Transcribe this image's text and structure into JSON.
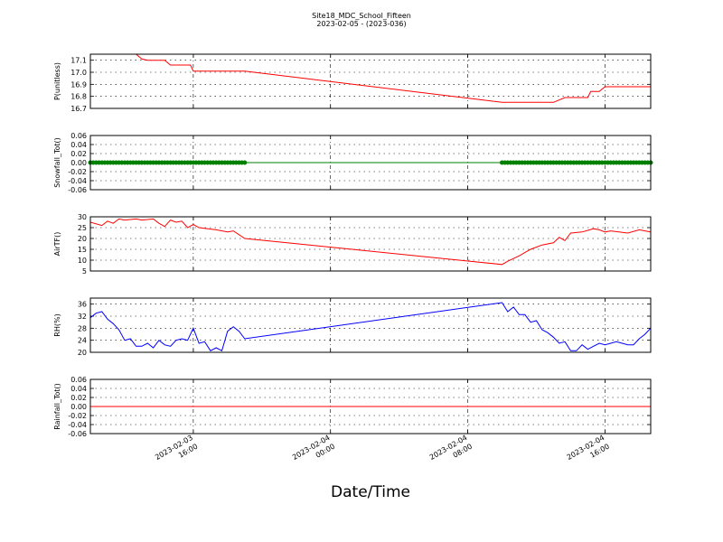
{
  "title_line1": "Site18_MDC_School_Fifteen",
  "title_line2": "2023-02-05 - (2023-036)",
  "xlabel": "Date/Time",
  "x_ticks": [
    {
      "pos": "2023-02-03T16:00",
      "line1": "2023-02-03",
      "line2": "16:00"
    },
    {
      "pos": "2023-02-04T00:00",
      "line1": "2023-02-04",
      "line2": "00:00"
    },
    {
      "pos": "2023-02-04T08:00",
      "line1": "2023-02-04",
      "line2": "08:00"
    },
    {
      "pos": "2023-02-04T16:00",
      "line1": "2023-02-04",
      "line2": "16:00"
    }
  ],
  "chart_data": [
    {
      "type": "line",
      "ylabel": "P(unitless)",
      "ylim": [
        16.7,
        17.15
      ],
      "yticks": [
        "16.7",
        "16.8",
        "16.9",
        "17.0",
        "17.1"
      ],
      "xlim": [
        "2023-02-03T10:00",
        "2023-02-04T18:40"
      ],
      "grid": true,
      "color": "#ff0000",
      "x": [
        "2023-02-03T12:40",
        "2023-02-03T13:00",
        "2023-02-03T13:20",
        "2023-02-03T14:20",
        "2023-02-03T14:40",
        "2023-02-03T15:50",
        "2023-02-03T16:00",
        "2023-02-03T19:00",
        "2023-02-04T10:00",
        "2023-02-04T12:00",
        "2023-02-04T13:00",
        "2023-02-04T13:40",
        "2023-02-04T15:00",
        "2023-02-04T15:10",
        "2023-02-04T15:40",
        "2023-02-04T16:00",
        "2023-02-04T18:40"
      ],
      "y": [
        17.15,
        17.11,
        17.1,
        17.1,
        17.06,
        17.06,
        17.01,
        17.01,
        16.75,
        16.75,
        16.75,
        16.79,
        16.79,
        16.84,
        16.84,
        16.88,
        16.88
      ]
    },
    {
      "type": "line",
      "ylabel": "Snowfall_Tot()",
      "ylim": [
        -0.06,
        0.06
      ],
      "yticks": [
        "-0.06",
        "-0.04",
        "-0.02",
        "0.00",
        "0.02",
        "0.04",
        "0.06"
      ],
      "xlim": [
        "2023-02-03T10:00",
        "2023-02-04T18:40"
      ],
      "grid": true,
      "color": "#008000",
      "markers": "circle",
      "x": [
        "2023-02-03T10:00",
        "2023-02-04T18:40"
      ],
      "y": [
        0.0,
        0.0
      ],
      "marker_ranges": [
        [
          "2023-02-03T10:00",
          "2023-02-03T19:00"
        ],
        [
          "2023-02-04T10:00",
          "2023-02-04T18:40"
        ]
      ],
      "marker_interval_minutes": 10
    },
    {
      "type": "line",
      "ylabel": "AirTF()",
      "ylim": [
        5,
        30
      ],
      "yticks": [
        "5",
        "10",
        "15",
        "20",
        "25",
        "30"
      ],
      "xlim": [
        "2023-02-03T10:00",
        "2023-02-04T18:40"
      ],
      "grid": true,
      "color": "#ff0000",
      "x": [
        "2023-02-03T10:00",
        "2023-02-03T10:40",
        "2023-02-03T11:00",
        "2023-02-03T11:20",
        "2023-02-03T11:40",
        "2023-02-03T12:00",
        "2023-02-03T12:40",
        "2023-02-03T13:00",
        "2023-02-03T13:40",
        "2023-02-03T14:00",
        "2023-02-03T14:20",
        "2023-02-03T14:40",
        "2023-02-03T15:00",
        "2023-02-03T15:20",
        "2023-02-03T15:40",
        "2023-02-03T16:00",
        "2023-02-03T16:20",
        "2023-02-03T17:20",
        "2023-02-03T18:00",
        "2023-02-03T18:20",
        "2023-02-03T19:00",
        "2023-02-04T10:00",
        "2023-02-04T10:20",
        "2023-02-04T11:00",
        "2023-02-04T11:40",
        "2023-02-04T12:20",
        "2023-02-04T13:00",
        "2023-02-04T13:20",
        "2023-02-04T13:40",
        "2023-02-04T14:00",
        "2023-02-04T14:40",
        "2023-02-04T15:20",
        "2023-02-04T15:40",
        "2023-02-04T16:00",
        "2023-02-04T16:20",
        "2023-02-04T17:20",
        "2023-02-04T18:00",
        "2023-02-04T18:20",
        "2023-02-04T18:40"
      ],
      "y": [
        27.5,
        26,
        28,
        27,
        29,
        28.5,
        29,
        28.5,
        29,
        27,
        25.5,
        28.5,
        27.5,
        28,
        25,
        26.5,
        25,
        24,
        23,
        23.5,
        20,
        8,
        9.5,
        12,
        15,
        17,
        18,
        20.5,
        19,
        22.5,
        23,
        24.5,
        24,
        23,
        23.5,
        22.5,
        24,
        23.5,
        23
      ]
    },
    {
      "type": "line",
      "ylabel": "RH(%)",
      "ylim": [
        20,
        38
      ],
      "yticks": [
        "20",
        "24",
        "28",
        "32",
        "36"
      ],
      "xlim": [
        "2023-02-03T10:00",
        "2023-02-04T18:40"
      ],
      "grid": true,
      "color": "#0000ff",
      "x": [
        "2023-02-03T10:00",
        "2023-02-03T10:20",
        "2023-02-03T10:40",
        "2023-02-03T11:00",
        "2023-02-03T11:20",
        "2023-02-03T11:40",
        "2023-02-03T12:00",
        "2023-02-03T12:20",
        "2023-02-03T12:40",
        "2023-02-03T13:00",
        "2023-02-03T13:20",
        "2023-02-03T13:40",
        "2023-02-03T14:00",
        "2023-02-03T14:20",
        "2023-02-03T14:40",
        "2023-02-03T15:00",
        "2023-02-03T15:20",
        "2023-02-03T15:40",
        "2023-02-03T16:00",
        "2023-02-03T16:20",
        "2023-02-03T16:40",
        "2023-02-03T17:00",
        "2023-02-03T17:20",
        "2023-02-03T17:40",
        "2023-02-03T18:00",
        "2023-02-03T18:20",
        "2023-02-03T18:40",
        "2023-02-03T19:00",
        "2023-02-04T10:00",
        "2023-02-04T10:20",
        "2023-02-04T10:40",
        "2023-02-04T11:00",
        "2023-02-04T11:20",
        "2023-02-04T11:40",
        "2023-02-04T12:00",
        "2023-02-04T12:20",
        "2023-02-04T12:40",
        "2023-02-04T13:00",
        "2023-02-04T13:20",
        "2023-02-04T13:40",
        "2023-02-04T14:00",
        "2023-02-04T14:20",
        "2023-02-04T14:40",
        "2023-02-04T15:00",
        "2023-02-04T15:20",
        "2023-02-04T15:40",
        "2023-02-04T16:00",
        "2023-02-04T16:20",
        "2023-02-04T16:40",
        "2023-02-04T17:00",
        "2023-02-04T17:20",
        "2023-02-04T17:40",
        "2023-02-04T18:00",
        "2023-02-04T18:20",
        "2023-02-04T18:40"
      ],
      "y": [
        31.5,
        33,
        33.5,
        31,
        29.5,
        27.5,
        24,
        24.5,
        22,
        22,
        23,
        21.5,
        24,
        22.5,
        22,
        24,
        24.5,
        24,
        28,
        23,
        23.5,
        20.5,
        21.5,
        20.5,
        27,
        28.5,
        27,
        24.5,
        36.5,
        33.5,
        35,
        32.5,
        32.5,
        30,
        30.5,
        27.5,
        26.5,
        25,
        23,
        23.5,
        20.5,
        20.5,
        22.5,
        21,
        22,
        23,
        22.5,
        23,
        23.5,
        23,
        22.5,
        22.5,
        24.5,
        26,
        28
      ]
    },
    {
      "type": "line",
      "ylabel": "Rainfall_Tot()",
      "ylim": [
        -0.06,
        0.06
      ],
      "yticks": [
        "-0.06",
        "-0.04",
        "-0.02",
        "0.00",
        "0.02",
        "0.04",
        "0.06"
      ],
      "xlim": [
        "2023-02-03T10:00",
        "2023-02-04T18:40"
      ],
      "grid": true,
      "color": "#ff0000",
      "x": [
        "2023-02-03T10:00",
        "2023-02-04T18:40"
      ],
      "y": [
        0.0,
        0.0
      ]
    }
  ]
}
